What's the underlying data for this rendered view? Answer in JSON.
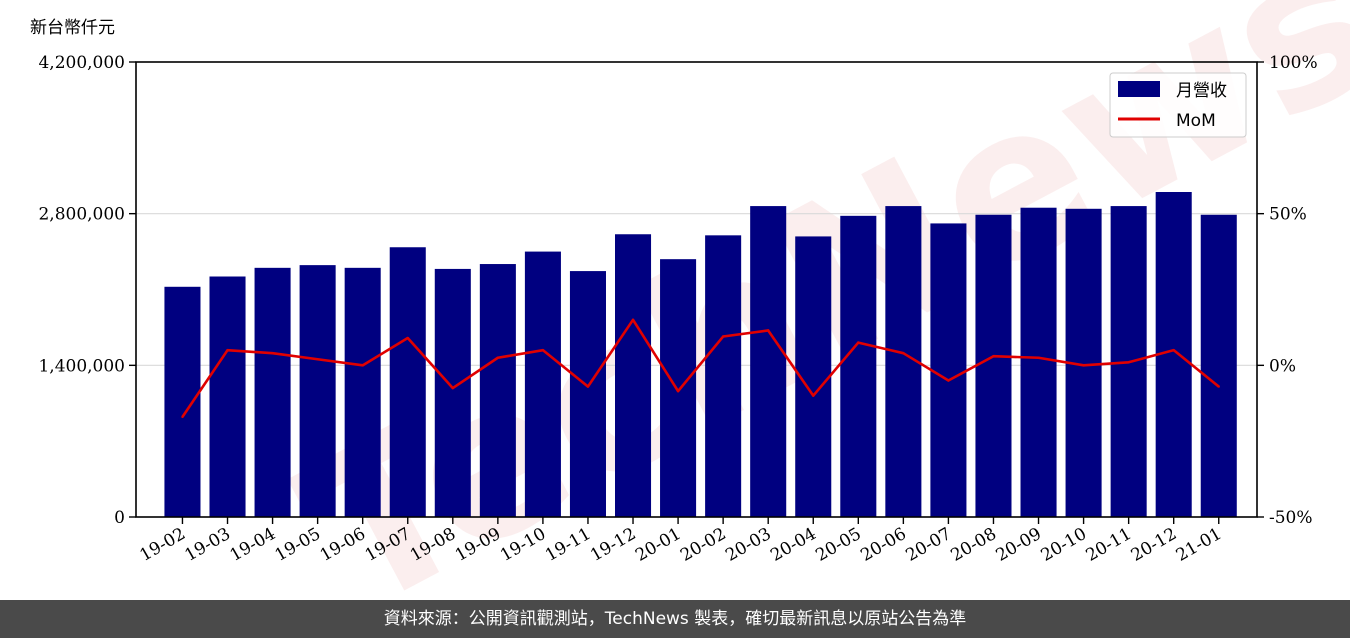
{
  "chart_data": {
    "type": "bar",
    "y_unit_label": "新台幣仟元",
    "categories": [
      "19-02",
      "19-03",
      "19-04",
      "19-05",
      "19-06",
      "19-07",
      "19-08",
      "19-09",
      "19-10",
      "19-11",
      "19-12",
      "20-01",
      "20-02",
      "20-03",
      "20-04",
      "20-05",
      "20-06",
      "20-07",
      "20-08",
      "20-09",
      "20-10",
      "20-11",
      "20-12",
      "21-01"
    ],
    "series": [
      {
        "name": "月營收",
        "type": "bar",
        "axis": "left",
        "color": "#000080",
        "values": [
          2125000,
          2220000,
          2300000,
          2325000,
          2300000,
          2490000,
          2290000,
          2335000,
          2450000,
          2270000,
          2610000,
          2380000,
          2600000,
          2870000,
          2590000,
          2780000,
          2870000,
          2710000,
          2790000,
          2855000,
          2845000,
          2870000,
          3000000,
          2790000
        ]
      },
      {
        "name": "MoM",
        "type": "line",
        "axis": "right",
        "color": "#e00000",
        "values": [
          -17,
          5,
          4,
          2,
          0,
          9,
          -7.5,
          2.5,
          5,
          -7,
          15,
          -8.5,
          9.5,
          11.5,
          -10,
          7.5,
          4,
          -5,
          3,
          2.5,
          0,
          1,
          5,
          -7
        ]
      }
    ],
    "y_left": {
      "ylim": [
        0,
        4200000
      ],
      "ticks": [
        "0",
        "1,400,000",
        "2,800,000",
        "4,200,000"
      ]
    },
    "y_right": {
      "ylim": [
        -50,
        100
      ],
      "ticks": [
        "-50%",
        "0%",
        "50%",
        "100%"
      ]
    },
    "grid": "horizontal",
    "legend_position": "top-right"
  },
  "watermark": "TechNews",
  "footer": {
    "source_text": "資料來源：公開資訊觀測站，TechNews 製表，確切最新訊息以原站公告為準"
  }
}
